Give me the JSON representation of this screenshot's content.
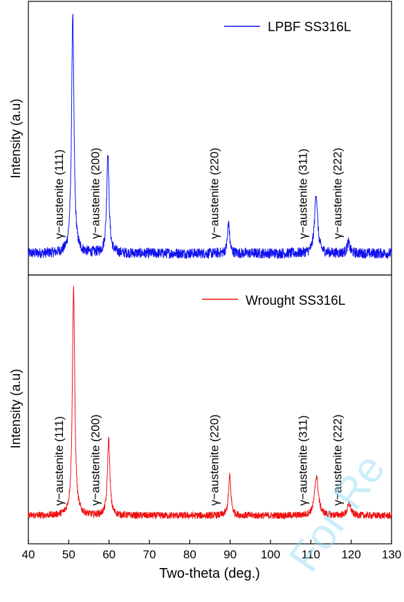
{
  "watermark": "For Re",
  "chart_data": [
    {
      "type": "line",
      "ylabel": "Intensity (a.u)",
      "xlabel": "",
      "xlim": [
        40,
        130
      ],
      "series": [
        {
          "name": "LPBF SS316L",
          "color": "#1010ee"
        }
      ],
      "baseline": 0.07,
      "noise": 0.022,
      "peaks": [
        {
          "x": 51.0,
          "height": 1.0,
          "width": 0.35
        },
        {
          "x": 59.7,
          "height": 0.42,
          "width": 0.35
        },
        {
          "x": 89.6,
          "height": 0.13,
          "width": 0.3
        },
        {
          "x": 111.3,
          "height": 0.25,
          "width": 0.45
        },
        {
          "x": 119.3,
          "height": 0.045,
          "width": 0.4
        }
      ],
      "annotations": [
        {
          "label": "γ−austenite (111)",
          "x": 47.5
        },
        {
          "label": "γ−austenite (200)",
          "x": 56.5
        },
        {
          "label": "γ−austenite (220)",
          "x": 86.0
        },
        {
          "label": "γ−austenite (311)",
          "x": 108.0
        },
        {
          "label": "γ−austenite (222)",
          "x": 116.5
        }
      ]
    },
    {
      "type": "line",
      "ylabel": "Intensity (a.u)",
      "xlabel": "Two-theta (deg.)",
      "xlim": [
        40,
        130
      ],
      "xticks": [
        40,
        50,
        60,
        70,
        80,
        90,
        100,
        110,
        120,
        130
      ],
      "series": [
        {
          "name": "Wrought SS316L",
          "color": "#ee1010"
        }
      ],
      "baseline": 0.1,
      "noise": 0.015,
      "peaks": [
        {
          "x": 51.2,
          "height": 0.98,
          "width": 0.35
        },
        {
          "x": 59.9,
          "height": 0.33,
          "width": 0.35
        },
        {
          "x": 89.9,
          "height": 0.17,
          "width": 0.35
        },
        {
          "x": 111.4,
          "height": 0.17,
          "width": 0.55
        },
        {
          "x": 119.5,
          "height": 0.05,
          "width": 0.5
        }
      ],
      "annotations": [
        {
          "label": "γ−austenite (111)",
          "x": 47.5
        },
        {
          "label": "γ−austenite (200)",
          "x": 56.5
        },
        {
          "label": "γ−austenite (220)",
          "x": 86.0
        },
        {
          "label": "γ−austenite (311)",
          "x": 108.0
        },
        {
          "label": "γ−austenite (222)",
          "x": 116.5
        }
      ]
    }
  ]
}
